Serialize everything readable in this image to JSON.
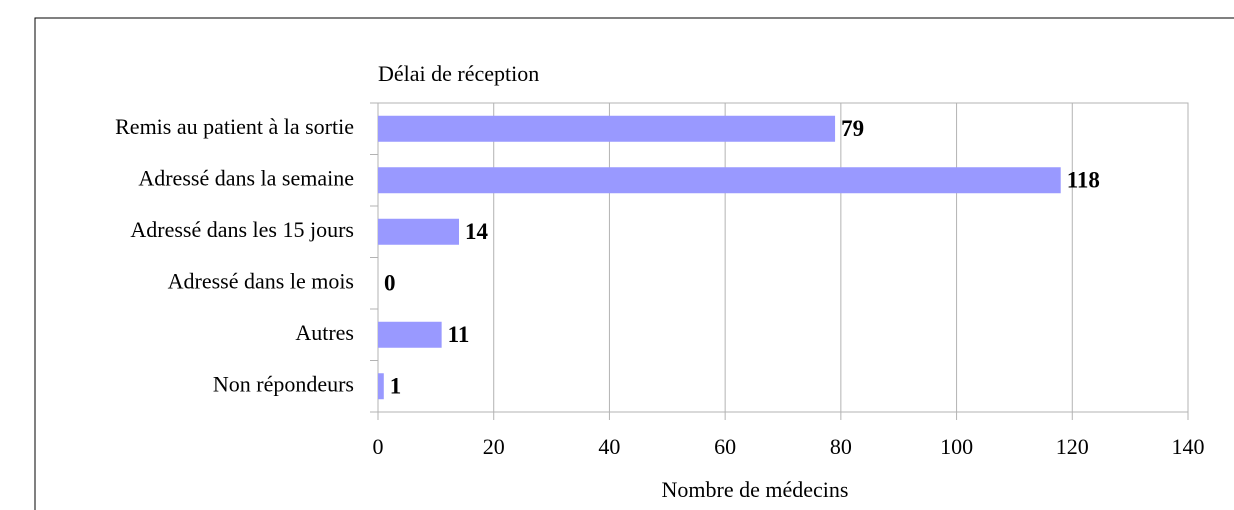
{
  "chart_data": {
    "type": "bar",
    "orientation": "horizontal",
    "title": "Délai de réception",
    "categories": [
      "Remis au patient à la sortie",
      "Adressé dans la semaine",
      "Adressé dans les 15 jours",
      "Adressé dans le mois",
      "Autres",
      "Non répondeurs"
    ],
    "values": [
      79,
      118,
      14,
      0,
      11,
      1
    ],
    "color": "#9999ff",
    "xlabel": "Nombre de médecins",
    "xlim": [
      0,
      140
    ],
    "xticks": [
      0,
      20,
      40,
      60,
      80,
      100,
      120,
      140
    ],
    "grid": true
  }
}
